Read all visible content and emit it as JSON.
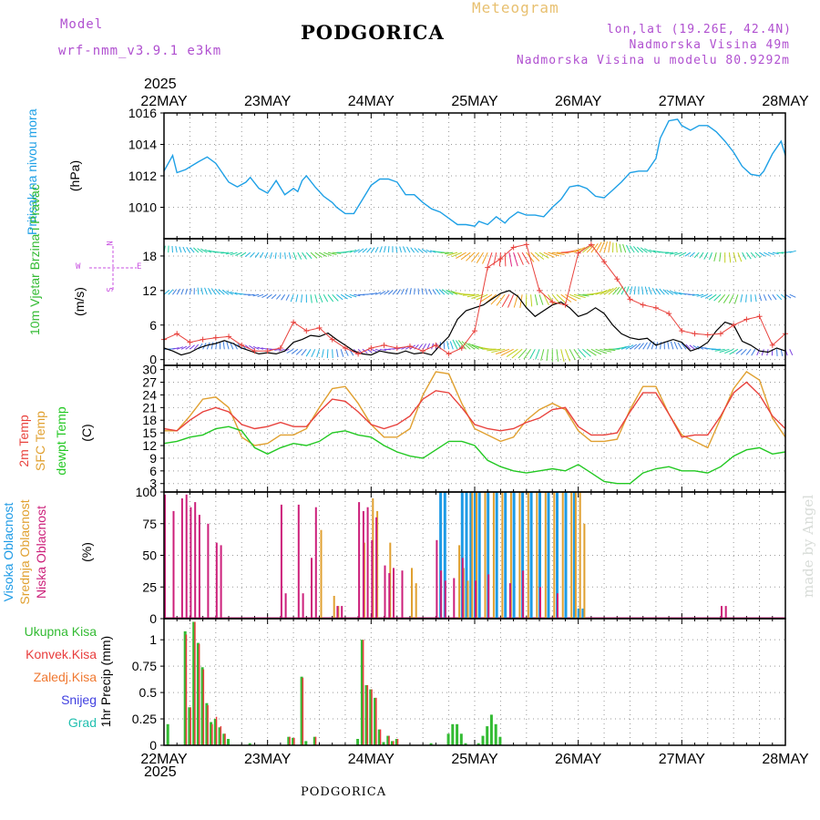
{
  "header": {
    "model_label": "Model",
    "model_name": "wrf-nmm_v3.9.1 e3km",
    "city": "PODGORICA",
    "product": "Meteogram",
    "lonlat": "lon,lat (19.26E, 42.4N)",
    "altitude": "Nadmorska Visina 49m",
    "model_altitude": "Nadmorska Visina u modelu 80.9292m",
    "footer_city": "PODGORICA",
    "watermark": "made by Angel",
    "year": "2025"
  },
  "colors": {
    "pressure": "#1ea0e6",
    "temp2m": "#e8413c",
    "sfc": "#e0a030",
    "dew": "#22c822",
    "high_cloud": "#1e9be6",
    "mid_cloud": "#e0a030",
    "low_cloud": "#cc1f7a",
    "total_precip": "#33bb33",
    "conv_precip": "#e83c3c",
    "frozen_precip": "#f07830",
    "snow": "#4040e0",
    "hail": "#22c0b0",
    "wind_labels": "#c850e0",
    "header_purple": "#b050d0",
    "meteogram": "#e8c070"
  },
  "chart_data": {
    "type": "meteogram",
    "time_axis": {
      "unit": "hours from 2025-05-22 00UTC",
      "range": [
        0,
        144
      ],
      "date_labels": [
        "22MAY",
        "23MAY",
        "24MAY",
        "25MAY",
        "26MAY",
        "27MAY",
        "28MAY"
      ],
      "year_label": "2025"
    },
    "pressure": {
      "label": "Pritisak na nivou mora",
      "unit": "(hPa)",
      "ylim": [
        1008,
        1016
      ],
      "ticks": [
        1010,
        1012,
        1014,
        1016
      ],
      "t": [
        0,
        2,
        3,
        5,
        8,
        10,
        12,
        15,
        17,
        19,
        20,
        22,
        24,
        26,
        28,
        30,
        31,
        32,
        33,
        35,
        37,
        39,
        40,
        42,
        44,
        46,
        48,
        50,
        52,
        54,
        56,
        58,
        60,
        62,
        64,
        66,
        68,
        70,
        72,
        73,
        75,
        77,
        79,
        80,
        82,
        84,
        86,
        88,
        90,
        92,
        94,
        96,
        98,
        100,
        102,
        104,
        106,
        108,
        110,
        112,
        114,
        115,
        117,
        119,
        120,
        122,
        124,
        126,
        128,
        130,
        132,
        134,
        136,
        138,
        139,
        141,
        143,
        144
      ],
      "v": [
        1012.3,
        1013.3,
        1012.2,
        1012.4,
        1012.9,
        1013.2,
        1012.8,
        1011.6,
        1011.3,
        1011.6,
        1011.9,
        1011.2,
        1010.9,
        1011.7,
        1010.8,
        1011.2,
        1011.0,
        1011.7,
        1012.0,
        1011.3,
        1010.7,
        1010.3,
        1010.0,
        1009.6,
        1009.6,
        1010.5,
        1011.4,
        1011.8,
        1011.8,
        1011.6,
        1010.8,
        1010.8,
        1010.3,
        1009.9,
        1009.7,
        1009.3,
        1008.9,
        1008.9,
        1008.8,
        1009.1,
        1008.9,
        1009.4,
        1009.0,
        1009.3,
        1009.7,
        1009.5,
        1009.5,
        1009.4,
        1010.0,
        1010.5,
        1011.3,
        1011.4,
        1011.2,
        1010.7,
        1010.6,
        1011.1,
        1011.6,
        1012.2,
        1012.3,
        1012.3,
        1013.1,
        1014.4,
        1015.5,
        1015.6,
        1015.2,
        1014.9,
        1015.2,
        1015.2,
        1014.8,
        1014.2,
        1013.5,
        1012.6,
        1012.1,
        1012.0,
        1012.3,
        1013.4,
        1014.2,
        1013.3
      ]
    },
    "wind": {
      "label": "10m Vjetar Brzina i Pravac",
      "unit": "(m/s)",
      "ylim": [
        -1,
        21
      ],
      "ticks": [
        0,
        6,
        12,
        18
      ],
      "compass": {
        "n": "N",
        "s": "S",
        "e": "E",
        "w": "W"
      },
      "speed_t": [
        0,
        2,
        4,
        6,
        8,
        10,
        12,
        14,
        16,
        18,
        20,
        22,
        24,
        26,
        28,
        30,
        32,
        34,
        36,
        38,
        40,
        42,
        44,
        46,
        48,
        50,
        52,
        54,
        56,
        58,
        60,
        62,
        64,
        66,
        68,
        70,
        72,
        74,
        76,
        78,
        80,
        82,
        84,
        86,
        88,
        90,
        92,
        94,
        96,
        98,
        100,
        102,
        104,
        106,
        108,
        110,
        112,
        114,
        116,
        118,
        120,
        122,
        124,
        126,
        128,
        130,
        132,
        134,
        136,
        138,
        140,
        142,
        144
      ],
      "speed": [
        2,
        1.5,
        0.8,
        1.2,
        2,
        2.5,
        2.8,
        3.3,
        2.8,
        2,
        1.5,
        1,
        1.2,
        1,
        1.5,
        3,
        3.5,
        4.2,
        4,
        4.6,
        3.5,
        2.5,
        1.5,
        1,
        0.8,
        1.5,
        1.2,
        1,
        1.5,
        1,
        1.2,
        0.8,
        2.5,
        4,
        7,
        8.5,
        9,
        9.5,
        10.5,
        11.5,
        12,
        11,
        9,
        7.5,
        8.5,
        9.5,
        10,
        9,
        7.5,
        8,
        9,
        8,
        6,
        4.5,
        3.8,
        3.5,
        3.7,
        2.5,
        3,
        3.5,
        3,
        1.5,
        2,
        3,
        5,
        6.5,
        6,
        3.2,
        2.5,
        1.5,
        1.3,
        2,
        1.5
      ],
      "gust_t": [
        0,
        3,
        6,
        9,
        12,
        15,
        18,
        21,
        24,
        27,
        30,
        33,
        36,
        39,
        42,
        45,
        48,
        51,
        54,
        57,
        60,
        63,
        66,
        69,
        72,
        75,
        78,
        81,
        84,
        87,
        90,
        93,
        96,
        99,
        102,
        105,
        108,
        111,
        114,
        117,
        120,
        123,
        126,
        129,
        132,
        135,
        138,
        141,
        144
      ],
      "gust": [
        3.5,
        4.5,
        3,
        3.5,
        3.8,
        4,
        2.5,
        1.5,
        1.5,
        2,
        6.5,
        5,
        5.5,
        3.5,
        2,
        1,
        2,
        2.5,
        2,
        2.3,
        1.5,
        2.5,
        1,
        2,
        5,
        16,
        17.5,
        19.5,
        20,
        12,
        10,
        9.5,
        18.5,
        20,
        17,
        14,
        10.5,
        9.5,
        9,
        8,
        5,
        4.5,
        4.3,
        4.5,
        6,
        7,
        7.5,
        2.5,
        4.5
      ]
    },
    "temperature": {
      "labels": [
        "2m Temp",
        "SFC Temp",
        "dewpt Temp"
      ],
      "unit": "(C)",
      "ylim": [
        1,
        31
      ],
      "ticks": [
        3,
        6,
        9,
        12,
        15,
        18,
        21,
        24,
        27,
        30
      ],
      "t": [
        0,
        3,
        6,
        9,
        12,
        15,
        18,
        21,
        24,
        27,
        30,
        33,
        36,
        39,
        42,
        45,
        48,
        51,
        54,
        57,
        60,
        63,
        66,
        69,
        72,
        75,
        78,
        81,
        84,
        87,
        90,
        93,
        96,
        99,
        102,
        105,
        108,
        111,
        114,
        117,
        120,
        123,
        126,
        129,
        132,
        135,
        138,
        141,
        144
      ],
      "t2m": [
        16,
        15.5,
        18,
        20,
        21,
        20,
        17,
        16,
        16.5,
        17.5,
        16.5,
        16.5,
        20,
        23,
        22.5,
        20,
        17,
        16,
        17,
        19,
        23,
        25,
        24.5,
        21,
        17,
        16,
        15.5,
        16,
        17.5,
        18.5,
        20.5,
        21,
        16.5,
        14.5,
        14.5,
        15,
        20,
        24.5,
        24.5,
        19.5,
        14,
        14.5,
        14.5,
        19,
        24.5,
        27,
        24,
        19,
        16
      ],
      "sfc": [
        15.5,
        15.5,
        19,
        23,
        23.5,
        21,
        14,
        12,
        12.5,
        14.5,
        14.5,
        16,
        21,
        25.5,
        26,
        22,
        17,
        14,
        14,
        16,
        24,
        29.5,
        29,
        22,
        16,
        14.5,
        13,
        14,
        18,
        20.5,
        22,
        20.5,
        15.5,
        13,
        13,
        13.5,
        20.5,
        26,
        26,
        19.5,
        14.5,
        13,
        11.5,
        18.5,
        25.5,
        29.5,
        27.5,
        18.5,
        14
      ],
      "dew": [
        12.5,
        13,
        14,
        14.5,
        16,
        16.5,
        15.5,
        11.5,
        10,
        11.5,
        12.5,
        12,
        13,
        15,
        15.5,
        14.5,
        14,
        12,
        10.5,
        9.5,
        9,
        11,
        13,
        13,
        12,
        8.5,
        7,
        6,
        5.5,
        6,
        6.5,
        6,
        7.5,
        5.5,
        3.5,
        3,
        3,
        5.5,
        6.5,
        7,
        6,
        6,
        5.5,
        7,
        9.5,
        11,
        11.5,
        10,
        10.5
      ]
    },
    "clouds": {
      "labels": [
        "Visoka Oblacnost",
        "Srednja Oblacnost",
        "Niska Oblacnost"
      ],
      "unit": "(%)",
      "ylim": [
        0,
        100
      ],
      "ticks": [
        0,
        25,
        50,
        75,
        100
      ],
      "high": [
        [
          64,
          100
        ],
        [
          65,
          100
        ],
        [
          69,
          100
        ],
        [
          70,
          100
        ],
        [
          71,
          100
        ],
        [
          72,
          100
        ],
        [
          73,
          100
        ],
        [
          75,
          100
        ],
        [
          77,
          100
        ],
        [
          79,
          100
        ],
        [
          81,
          100
        ],
        [
          83,
          100
        ],
        [
          85,
          100
        ],
        [
          87,
          100
        ],
        [
          89,
          100
        ],
        [
          91,
          100
        ],
        [
          93,
          100
        ],
        [
          95,
          100
        ],
        [
          96,
          8
        ],
        [
          97,
          8
        ]
      ],
      "mid": [
        [
          36,
          70
        ],
        [
          39,
          18
        ],
        [
          40,
          10
        ],
        [
          46,
          60
        ],
        [
          48,
          95
        ],
        [
          49,
          85
        ],
        [
          52,
          60
        ],
        [
          57,
          40
        ],
        [
          58,
          28
        ],
        [
          68,
          58
        ],
        [
          69,
          40
        ],
        [
          70,
          30
        ],
        [
          71,
          100
        ],
        [
          72,
          100
        ],
        [
          74,
          100
        ],
        [
          76,
          100
        ],
        [
          78,
          100
        ],
        [
          80,
          100
        ],
        [
          82,
          100
        ],
        [
          84,
          100
        ],
        [
          86,
          100
        ],
        [
          88,
          100
        ],
        [
          90,
          100
        ],
        [
          92,
          100
        ],
        [
          94,
          100
        ],
        [
          95,
          100
        ],
        [
          96,
          100
        ],
        [
          97,
          75
        ]
      ],
      "low": [
        [
          0,
          98
        ],
        [
          2,
          85
        ],
        [
          4,
          95
        ],
        [
          5,
          98
        ],
        [
          6,
          88
        ],
        [
          7,
          92
        ],
        [
          8,
          82
        ],
        [
          10,
          75
        ],
        [
          12,
          60
        ],
        [
          13,
          58
        ],
        [
          27,
          90
        ],
        [
          28,
          20
        ],
        [
          31,
          90
        ],
        [
          32,
          20
        ],
        [
          34,
          48
        ],
        [
          35,
          88
        ],
        [
          40,
          10
        ],
        [
          41,
          10
        ],
        [
          45,
          92
        ],
        [
          46,
          85
        ],
        [
          47,
          88
        ],
        [
          48,
          62
        ],
        [
          49,
          80
        ],
        [
          51,
          42
        ],
        [
          52,
          36
        ],
        [
          53,
          40
        ],
        [
          55,
          38
        ],
        [
          63,
          62
        ],
        [
          64,
          38
        ],
        [
          65,
          30
        ],
        [
          67,
          32
        ],
        [
          69,
          48
        ],
        [
          72,
          30
        ],
        [
          75,
          35
        ],
        [
          80,
          28
        ],
        [
          83,
          38
        ],
        [
          87,
          25
        ],
        [
          91,
          20
        ],
        [
          129,
          10
        ],
        [
          130,
          10
        ]
      ]
    },
    "precipitation": {
      "ylabel": "1hr Precip (mm)",
      "ylim": [
        0,
        1.2
      ],
      "ticks": [
        0,
        0.25,
        0.5,
        0.75,
        1
      ],
      "legend": [
        "Ukupna Kisa",
        "Konvek.Kisa",
        "Zaledj.Kisa",
        "Snijeg",
        "Grad"
      ],
      "total": [
        [
          1,
          0.2
        ],
        [
          5,
          1.08
        ],
        [
          6,
          0.36
        ],
        [
          7,
          1.17
        ],
        [
          8,
          0.97
        ],
        [
          9,
          0.74
        ],
        [
          10,
          0.4
        ],
        [
          11,
          0.22
        ],
        [
          12,
          0.25
        ],
        [
          13,
          0.17
        ],
        [
          14,
          0.11
        ],
        [
          15,
          0.06
        ],
        [
          20,
          0.02
        ],
        [
          29,
          0.08
        ],
        [
          30,
          0.07
        ],
        [
          32,
          0.65
        ],
        [
          33,
          0.04
        ],
        [
          35,
          0.08
        ],
        [
          45,
          0.06
        ],
        [
          46,
          1.0
        ],
        [
          47,
          0.57
        ],
        [
          48,
          0.53
        ],
        [
          49,
          0.45
        ],
        [
          50,
          0.15
        ],
        [
          51,
          0.03
        ],
        [
          52,
          0.09
        ],
        [
          53,
          0.04
        ],
        [
          54,
          0.06
        ],
        [
          62,
          0.02
        ],
        [
          66,
          0.11
        ],
        [
          67,
          0.2
        ],
        [
          68,
          0.2
        ],
        [
          69,
          0.11
        ],
        [
          70,
          0.02
        ],
        [
          73,
          0.02
        ],
        [
          74,
          0.09
        ],
        [
          75,
          0.18
        ],
        [
          76,
          0.29
        ],
        [
          77,
          0.2
        ],
        [
          78,
          0.08
        ]
      ],
      "convective": [
        [
          5,
          1.05
        ],
        [
          6,
          0.36
        ],
        [
          7,
          1.17
        ],
        [
          8,
          0.96
        ],
        [
          9,
          0.72
        ],
        [
          10,
          0.38
        ],
        [
          11,
          0.2
        ],
        [
          12,
          0.27
        ],
        [
          13,
          0.18
        ],
        [
          14,
          0.11
        ],
        [
          29,
          0.08
        ],
        [
          30,
          0.07
        ],
        [
          32,
          0.64
        ],
        [
          35,
          0.08
        ],
        [
          46,
          1.0
        ],
        [
          47,
          0.57
        ],
        [
          48,
          0.53
        ],
        [
          49,
          0.45
        ],
        [
          50,
          0.15
        ],
        [
          52,
          0.09
        ],
        [
          53,
          0.04
        ],
        [
          54,
          0.06
        ]
      ]
    }
  }
}
